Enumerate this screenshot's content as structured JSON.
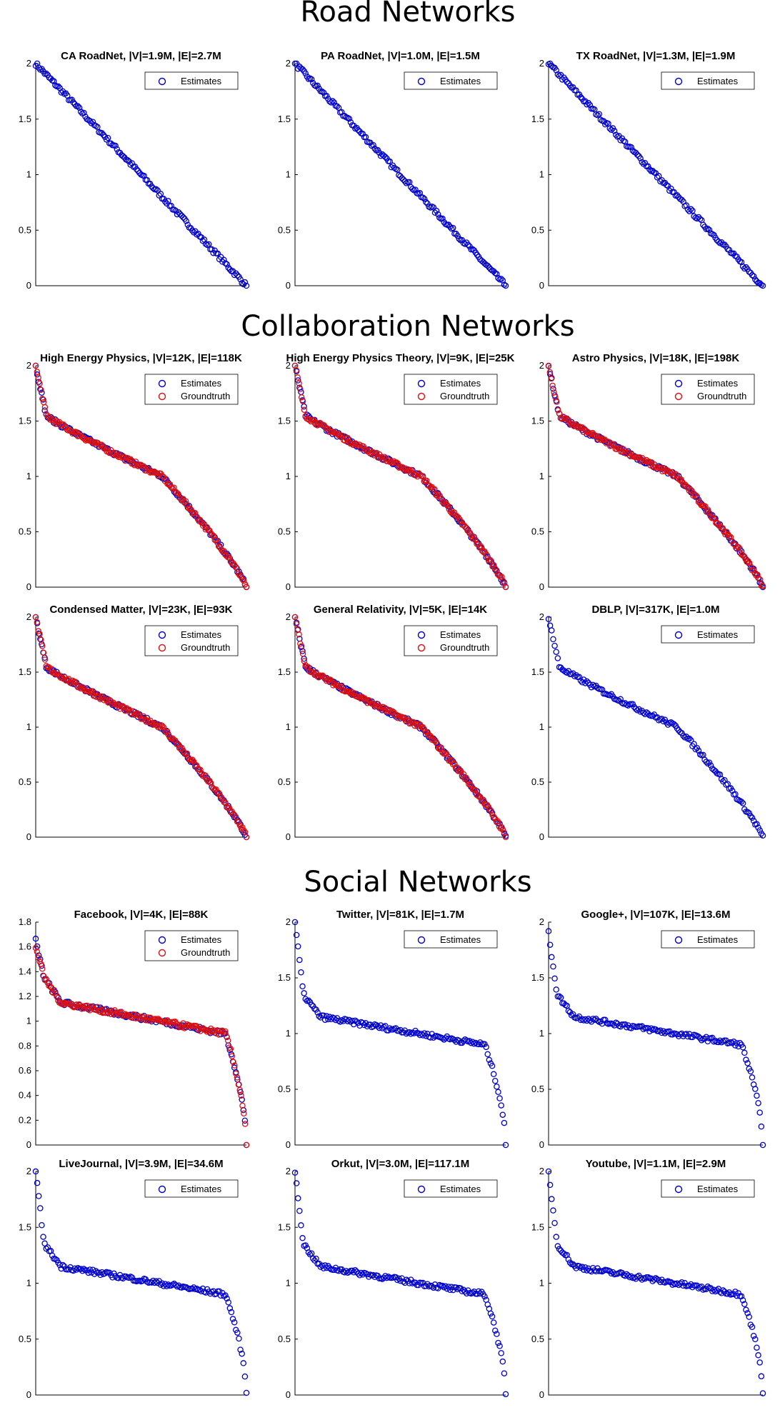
{
  "sections": [
    {
      "title": "Road Networks"
    },
    {
      "title": "Collaboration Networks"
    },
    {
      "title": "Social Networks"
    }
  ],
  "colors": {
    "estimates": "#0000cc",
    "groundtruth": "#dd1111"
  },
  "chart_data": [
    {
      "type": "scatter",
      "title": "CA RoadNet, |V|=1.9M, |E|=2.7M",
      "ylim": [
        0,
        2
      ],
      "yticks": [
        0,
        0.5,
        1,
        1.5,
        2
      ],
      "legend": [
        "Estimates"
      ],
      "series": [
        {
          "name": "Estimates",
          "shape": "road",
          "start": 2,
          "end": 0
        }
      ]
    },
    {
      "type": "scatter",
      "title": "PA RoadNet, |V|=1.0M, |E|=1.5M",
      "ylim": [
        0,
        2
      ],
      "yticks": [
        0,
        0.5,
        1,
        1.5,
        2
      ],
      "legend": [
        "Estimates"
      ],
      "series": [
        {
          "name": "Estimates",
          "shape": "road",
          "start": 2,
          "end": 0
        }
      ]
    },
    {
      "type": "scatter",
      "title": "TX RoadNet, |V|=1.3M, |E|=1.9M",
      "ylim": [
        0,
        2
      ],
      "yticks": [
        0,
        0.5,
        1,
        1.5,
        2
      ],
      "legend": [
        "Estimates"
      ],
      "series": [
        {
          "name": "Estimates",
          "shape": "road",
          "start": 2,
          "end": 0
        }
      ]
    },
    {
      "type": "scatter",
      "title": "High Energy Physics, |V|=12K, |E|=118K",
      "ylim": [
        0,
        2
      ],
      "yticks": [
        0,
        0.5,
        1,
        1.5,
        2
      ],
      "legend": [
        "Estimates",
        "Groundtruth"
      ],
      "series": [
        {
          "name": "Estimates",
          "shape": "collab",
          "plateau": 1.0
        },
        {
          "name": "Groundtruth",
          "shape": "collab",
          "plateau": 1.0
        }
      ]
    },
    {
      "type": "scatter",
      "title": "High Energy Physics Theory, |V|=9K, |E|=25K",
      "ylim": [
        0,
        2
      ],
      "yticks": [
        0,
        0.5,
        1,
        1.5,
        2
      ],
      "legend": [
        "Estimates",
        "Groundtruth"
      ],
      "series": [
        {
          "name": "Estimates",
          "shape": "collab",
          "plateau": 1.0
        },
        {
          "name": "Groundtruth",
          "shape": "collab",
          "plateau": 1.0
        }
      ]
    },
    {
      "type": "scatter",
      "title": "Astro Physics, |V|=18K, |E|=198K",
      "ylim": [
        0,
        2
      ],
      "yticks": [
        0,
        0.5,
        1,
        1.5,
        2
      ],
      "legend": [
        "Estimates",
        "Groundtruth"
      ],
      "series": [
        {
          "name": "Estimates",
          "shape": "collab",
          "plateau": 1.0
        },
        {
          "name": "Groundtruth",
          "shape": "collab",
          "plateau": 1.0
        }
      ]
    },
    {
      "type": "scatter",
      "title": "Condensed Matter, |V|=23K, |E|=93K",
      "ylim": [
        0,
        2
      ],
      "yticks": [
        0,
        0.5,
        1,
        1.5,
        2
      ],
      "legend": [
        "Estimates",
        "Groundtruth"
      ],
      "series": [
        {
          "name": "Estimates",
          "shape": "collab",
          "plateau": 1.0
        },
        {
          "name": "Groundtruth",
          "shape": "collab",
          "plateau": 1.0
        }
      ]
    },
    {
      "type": "scatter",
      "title": "General Relativity, |V|=5K, |E|=14K",
      "ylim": [
        0,
        2
      ],
      "yticks": [
        0,
        0.5,
        1,
        1.5,
        2
      ],
      "legend": [
        "Estimates",
        "Groundtruth"
      ],
      "series": [
        {
          "name": "Estimates",
          "shape": "collab",
          "plateau": 1.0
        },
        {
          "name": "Groundtruth",
          "shape": "collab",
          "plateau": 1.0
        }
      ]
    },
    {
      "type": "scatter",
      "title": "DBLP, |V|=317K, |E|=1.0M",
      "ylim": [
        0,
        2
      ],
      "yticks": [
        0,
        0.5,
        1,
        1.5,
        2
      ],
      "legend": [
        "Estimates"
      ],
      "series": [
        {
          "name": "Estimates",
          "shape": "collab",
          "plateau": 1.0
        }
      ]
    },
    {
      "type": "scatter",
      "title": "Facebook, |V|=4K, |E|=88K",
      "ylim": [
        0,
        1.8
      ],
      "yticks": [
        0,
        0.2,
        0.4,
        0.6,
        0.8,
        1,
        1.2,
        1.4,
        1.6,
        1.8
      ],
      "legend": [
        "Estimates",
        "Groundtruth"
      ],
      "series": [
        {
          "name": "Estimates",
          "shape": "social",
          "start": 1.65,
          "plateau": 1.0
        },
        {
          "name": "Groundtruth",
          "shape": "social",
          "start": 1.6,
          "plateau": 1.0
        }
      ]
    },
    {
      "type": "scatter",
      "title": "Twitter, |V|=81K, |E|=1.7M",
      "ylim": [
        0,
        2
      ],
      "yticks": [
        0,
        0.5,
        1,
        1.5,
        2
      ],
      "legend": [
        "Estimates"
      ],
      "series": [
        {
          "name": "Estimates",
          "shape": "social",
          "start": 2,
          "plateau": 1.0
        }
      ]
    },
    {
      "type": "scatter",
      "title": "Google+, |V|=107K, |E|=13.6M",
      "ylim": [
        0,
        2
      ],
      "yticks": [
        0,
        0.5,
        1,
        1.5,
        2
      ],
      "legend": [
        "Estimates"
      ],
      "series": [
        {
          "name": "Estimates",
          "shape": "social",
          "start": 1.9,
          "plateau": 1.0
        }
      ]
    },
    {
      "type": "scatter",
      "title": "LiveJournal, |V|=3.9M, |E|=34.6M",
      "ylim": [
        0,
        2
      ],
      "yticks": [
        0,
        0.5,
        1,
        1.5,
        2
      ],
      "legend": [
        "Estimates"
      ],
      "series": [
        {
          "name": "Estimates",
          "shape": "social",
          "start": 2,
          "plateau": 1.0
        }
      ]
    },
    {
      "type": "scatter",
      "title": "Orkut, |V|=3.0M, |E|=117.1M",
      "ylim": [
        0,
        2
      ],
      "yticks": [
        0,
        0.5,
        1,
        1.5,
        2
      ],
      "legend": [
        "Estimates"
      ],
      "series": [
        {
          "name": "Estimates",
          "shape": "social",
          "start": 2,
          "plateau": 1.0
        }
      ]
    },
    {
      "type": "scatter",
      "title": "Youtube, |V|=1.1M, |E|=2.9M",
      "ylim": [
        0,
        2
      ],
      "yticks": [
        0,
        0.5,
        1,
        1.5,
        2
      ],
      "legend": [
        "Estimates"
      ],
      "series": [
        {
          "name": "Estimates",
          "shape": "social",
          "start": 2,
          "plateau": 1.0
        }
      ]
    }
  ]
}
